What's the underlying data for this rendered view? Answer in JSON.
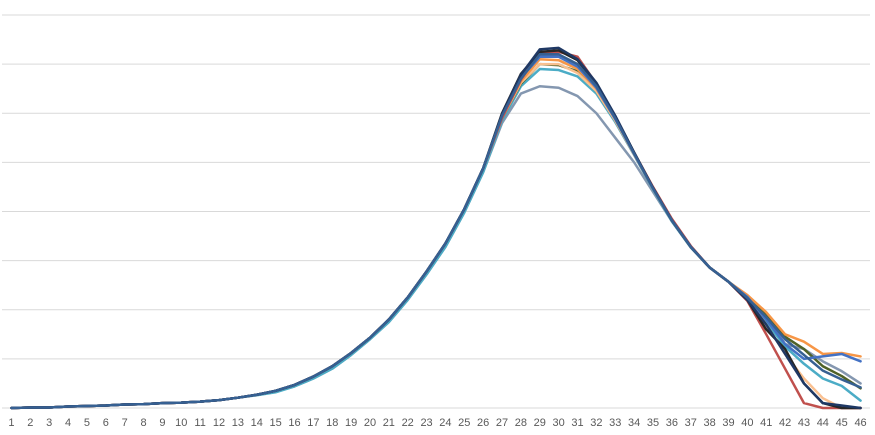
{
  "chart_data": {
    "type": "line",
    "categories": [
      "1",
      "2",
      "3",
      "4",
      "5",
      "6",
      "7",
      "8",
      "9",
      "10",
      "11",
      "12",
      "13",
      "14",
      "15",
      "16",
      "17",
      "18",
      "19",
      "20",
      "21",
      "22",
      "23",
      "24",
      "25",
      "26",
      "27",
      "28",
      "29",
      "30",
      "31",
      "32",
      "33",
      "34",
      "35",
      "36",
      "37",
      "38",
      "39",
      "40",
      "41",
      "42",
      "43",
      "44",
      "45",
      "46"
    ],
    "ylim": [
      0,
      8
    ],
    "yticks": [
      0,
      1,
      2,
      3,
      4,
      5,
      6,
      7,
      8
    ],
    "grid": true,
    "series": [
      {
        "color": "#8497b0",
        "values": [
          0,
          0.01,
          0.01,
          0.03,
          0.04,
          0.05,
          0.07,
          0.08,
          0.1,
          0.11,
          0.13,
          0.16,
          0.21,
          0.27,
          0.33,
          0.44,
          0.6,
          0.8,
          1.08,
          1.4,
          1.75,
          2.2,
          2.72,
          3.28,
          3.98,
          4.8,
          5.8,
          6.4,
          6.55,
          6.52,
          6.35,
          6.0,
          5.5,
          5.0,
          4.4,
          3.8,
          3.27,
          2.86,
          2.57,
          2.27,
          1.9,
          1.3,
          1.2,
          0.95,
          0.75,
          0.5
        ]
      },
      {
        "color": "#4bacc6",
        "values": [
          0,
          0.01,
          0.01,
          0.03,
          0.04,
          0.05,
          0.07,
          0.08,
          0.1,
          0.11,
          0.13,
          0.16,
          0.21,
          0.26,
          0.32,
          0.44,
          0.6,
          0.8,
          1.08,
          1.4,
          1.75,
          2.2,
          2.72,
          3.28,
          3.98,
          4.8,
          5.85,
          6.55,
          6.9,
          6.88,
          6.75,
          6.4,
          5.82,
          5.15,
          4.45,
          3.8,
          3.27,
          2.86,
          2.57,
          2.25,
          1.75,
          1.25,
          0.9,
          0.6,
          0.45,
          0.15
        ]
      },
      {
        "color": "#4f6228",
        "values": [
          0,
          0.01,
          0.01,
          0.03,
          0.04,
          0.05,
          0.07,
          0.08,
          0.1,
          0.11,
          0.13,
          0.16,
          0.21,
          0.27,
          0.35,
          0.47,
          0.64,
          0.85,
          1.12,
          1.43,
          1.8,
          2.25,
          2.78,
          3.35,
          4.05,
          4.88,
          5.9,
          6.6,
          7.0,
          6.98,
          6.85,
          6.45,
          5.85,
          5.16,
          4.47,
          3.82,
          3.28,
          2.86,
          2.57,
          2.28,
          1.9,
          1.45,
          1.2,
          0.85,
          0.65,
          0.4
        ]
      },
      {
        "color": "#fac090",
        "values": [
          0,
          0.01,
          0.01,
          0.03,
          0.04,
          0.05,
          0.07,
          0.08,
          0.1,
          0.11,
          0.13,
          0.16,
          0.21,
          0.27,
          0.35,
          0.47,
          0.64,
          0.85,
          1.12,
          1.43,
          1.8,
          2.25,
          2.78,
          3.35,
          4.05,
          4.88,
          5.9,
          6.62,
          7.0,
          7.0,
          6.82,
          6.45,
          5.85,
          5.16,
          4.47,
          3.82,
          3.28,
          2.86,
          2.57,
          2.22,
          1.7,
          1.1,
          0.6,
          0.2,
          0,
          0
        ]
      },
      {
        "color": "#f79646",
        "values": [
          0,
          0.01,
          0.01,
          0.03,
          0.04,
          0.05,
          0.07,
          0.08,
          0.1,
          0.11,
          0.13,
          0.16,
          0.21,
          0.27,
          0.35,
          0.47,
          0.64,
          0.85,
          1.12,
          1.43,
          1.8,
          2.25,
          2.78,
          3.35,
          4.05,
          4.88,
          5.92,
          6.65,
          7.1,
          7.08,
          6.9,
          6.5,
          5.88,
          5.18,
          4.47,
          3.82,
          3.28,
          2.86,
          2.57,
          2.3,
          1.95,
          1.5,
          1.35,
          1.1,
          1.12,
          1.05
        ]
      },
      {
        "color": "#c0504d",
        "values": [
          0,
          0.01,
          0.01,
          0.03,
          0.04,
          0.05,
          0.07,
          0.08,
          0.1,
          0.11,
          0.13,
          0.16,
          0.21,
          0.27,
          0.35,
          0.47,
          0.64,
          0.85,
          1.12,
          1.43,
          1.8,
          2.25,
          2.78,
          3.35,
          4.05,
          4.88,
          5.9,
          6.68,
          7.25,
          7.25,
          7.15,
          6.6,
          5.92,
          5.2,
          4.5,
          3.85,
          3.3,
          2.86,
          2.57,
          2.18,
          1.5,
          0.8,
          0.1,
          0,
          0,
          0
        ]
      },
      {
        "color": "#4472c4",
        "values": [
          0,
          0.01,
          0.01,
          0.03,
          0.04,
          0.05,
          0.07,
          0.08,
          0.1,
          0.11,
          0.13,
          0.16,
          0.21,
          0.27,
          0.35,
          0.47,
          0.64,
          0.85,
          1.12,
          1.43,
          1.8,
          2.25,
          2.78,
          3.35,
          4.05,
          4.88,
          5.95,
          6.72,
          7.15,
          7.15,
          6.95,
          6.52,
          5.88,
          5.17,
          4.47,
          3.82,
          3.28,
          2.86,
          2.57,
          2.26,
          1.8,
          1.3,
          1.0,
          1.05,
          1.1,
          0.95
        ]
      },
      {
        "color": "#262626",
        "values": [
          0,
          0.01,
          0.01,
          0.03,
          0.04,
          0.05,
          0.07,
          0.08,
          0.1,
          0.11,
          0.13,
          0.16,
          0.21,
          0.27,
          0.35,
          0.47,
          0.64,
          0.85,
          1.12,
          1.43,
          1.8,
          2.25,
          2.78,
          3.35,
          4.05,
          4.88,
          6.0,
          6.8,
          7.25,
          7.28,
          7.08,
          6.6,
          5.94,
          5.2,
          4.48,
          3.82,
          3.28,
          2.86,
          2.57,
          2.2,
          1.6,
          1.2,
          0.5,
          0.1,
          0,
          0
        ]
      },
      {
        "color": "#1f3864",
        "values": [
          0,
          0.01,
          0.01,
          0.03,
          0.04,
          0.05,
          0.07,
          0.08,
          0.1,
          0.11,
          0.13,
          0.16,
          0.21,
          0.27,
          0.35,
          0.47,
          0.64,
          0.85,
          1.12,
          1.43,
          1.8,
          2.25,
          2.78,
          3.35,
          4.05,
          4.88,
          5.98,
          6.78,
          7.3,
          7.33,
          7.1,
          6.62,
          5.95,
          5.2,
          4.48,
          3.82,
          3.28,
          2.86,
          2.57,
          2.2,
          1.7,
          1.1,
          0.5,
          0.1,
          0.05,
          0
        ]
      },
      {
        "color": "#366092",
        "values": [
          0,
          0.01,
          0.01,
          0.03,
          0.04,
          0.05,
          0.07,
          0.08,
          0.1,
          0.11,
          0.13,
          0.16,
          0.21,
          0.27,
          0.35,
          0.47,
          0.64,
          0.85,
          1.12,
          1.43,
          1.8,
          2.25,
          2.78,
          3.35,
          4.05,
          4.88,
          5.95,
          6.7,
          7.2,
          7.2,
          7.0,
          6.55,
          5.9,
          5.18,
          4.47,
          3.82,
          3.28,
          2.86,
          2.57,
          2.24,
          1.85,
          1.4,
          1.08,
          0.76,
          0.58,
          0.42
        ]
      }
    ]
  }
}
